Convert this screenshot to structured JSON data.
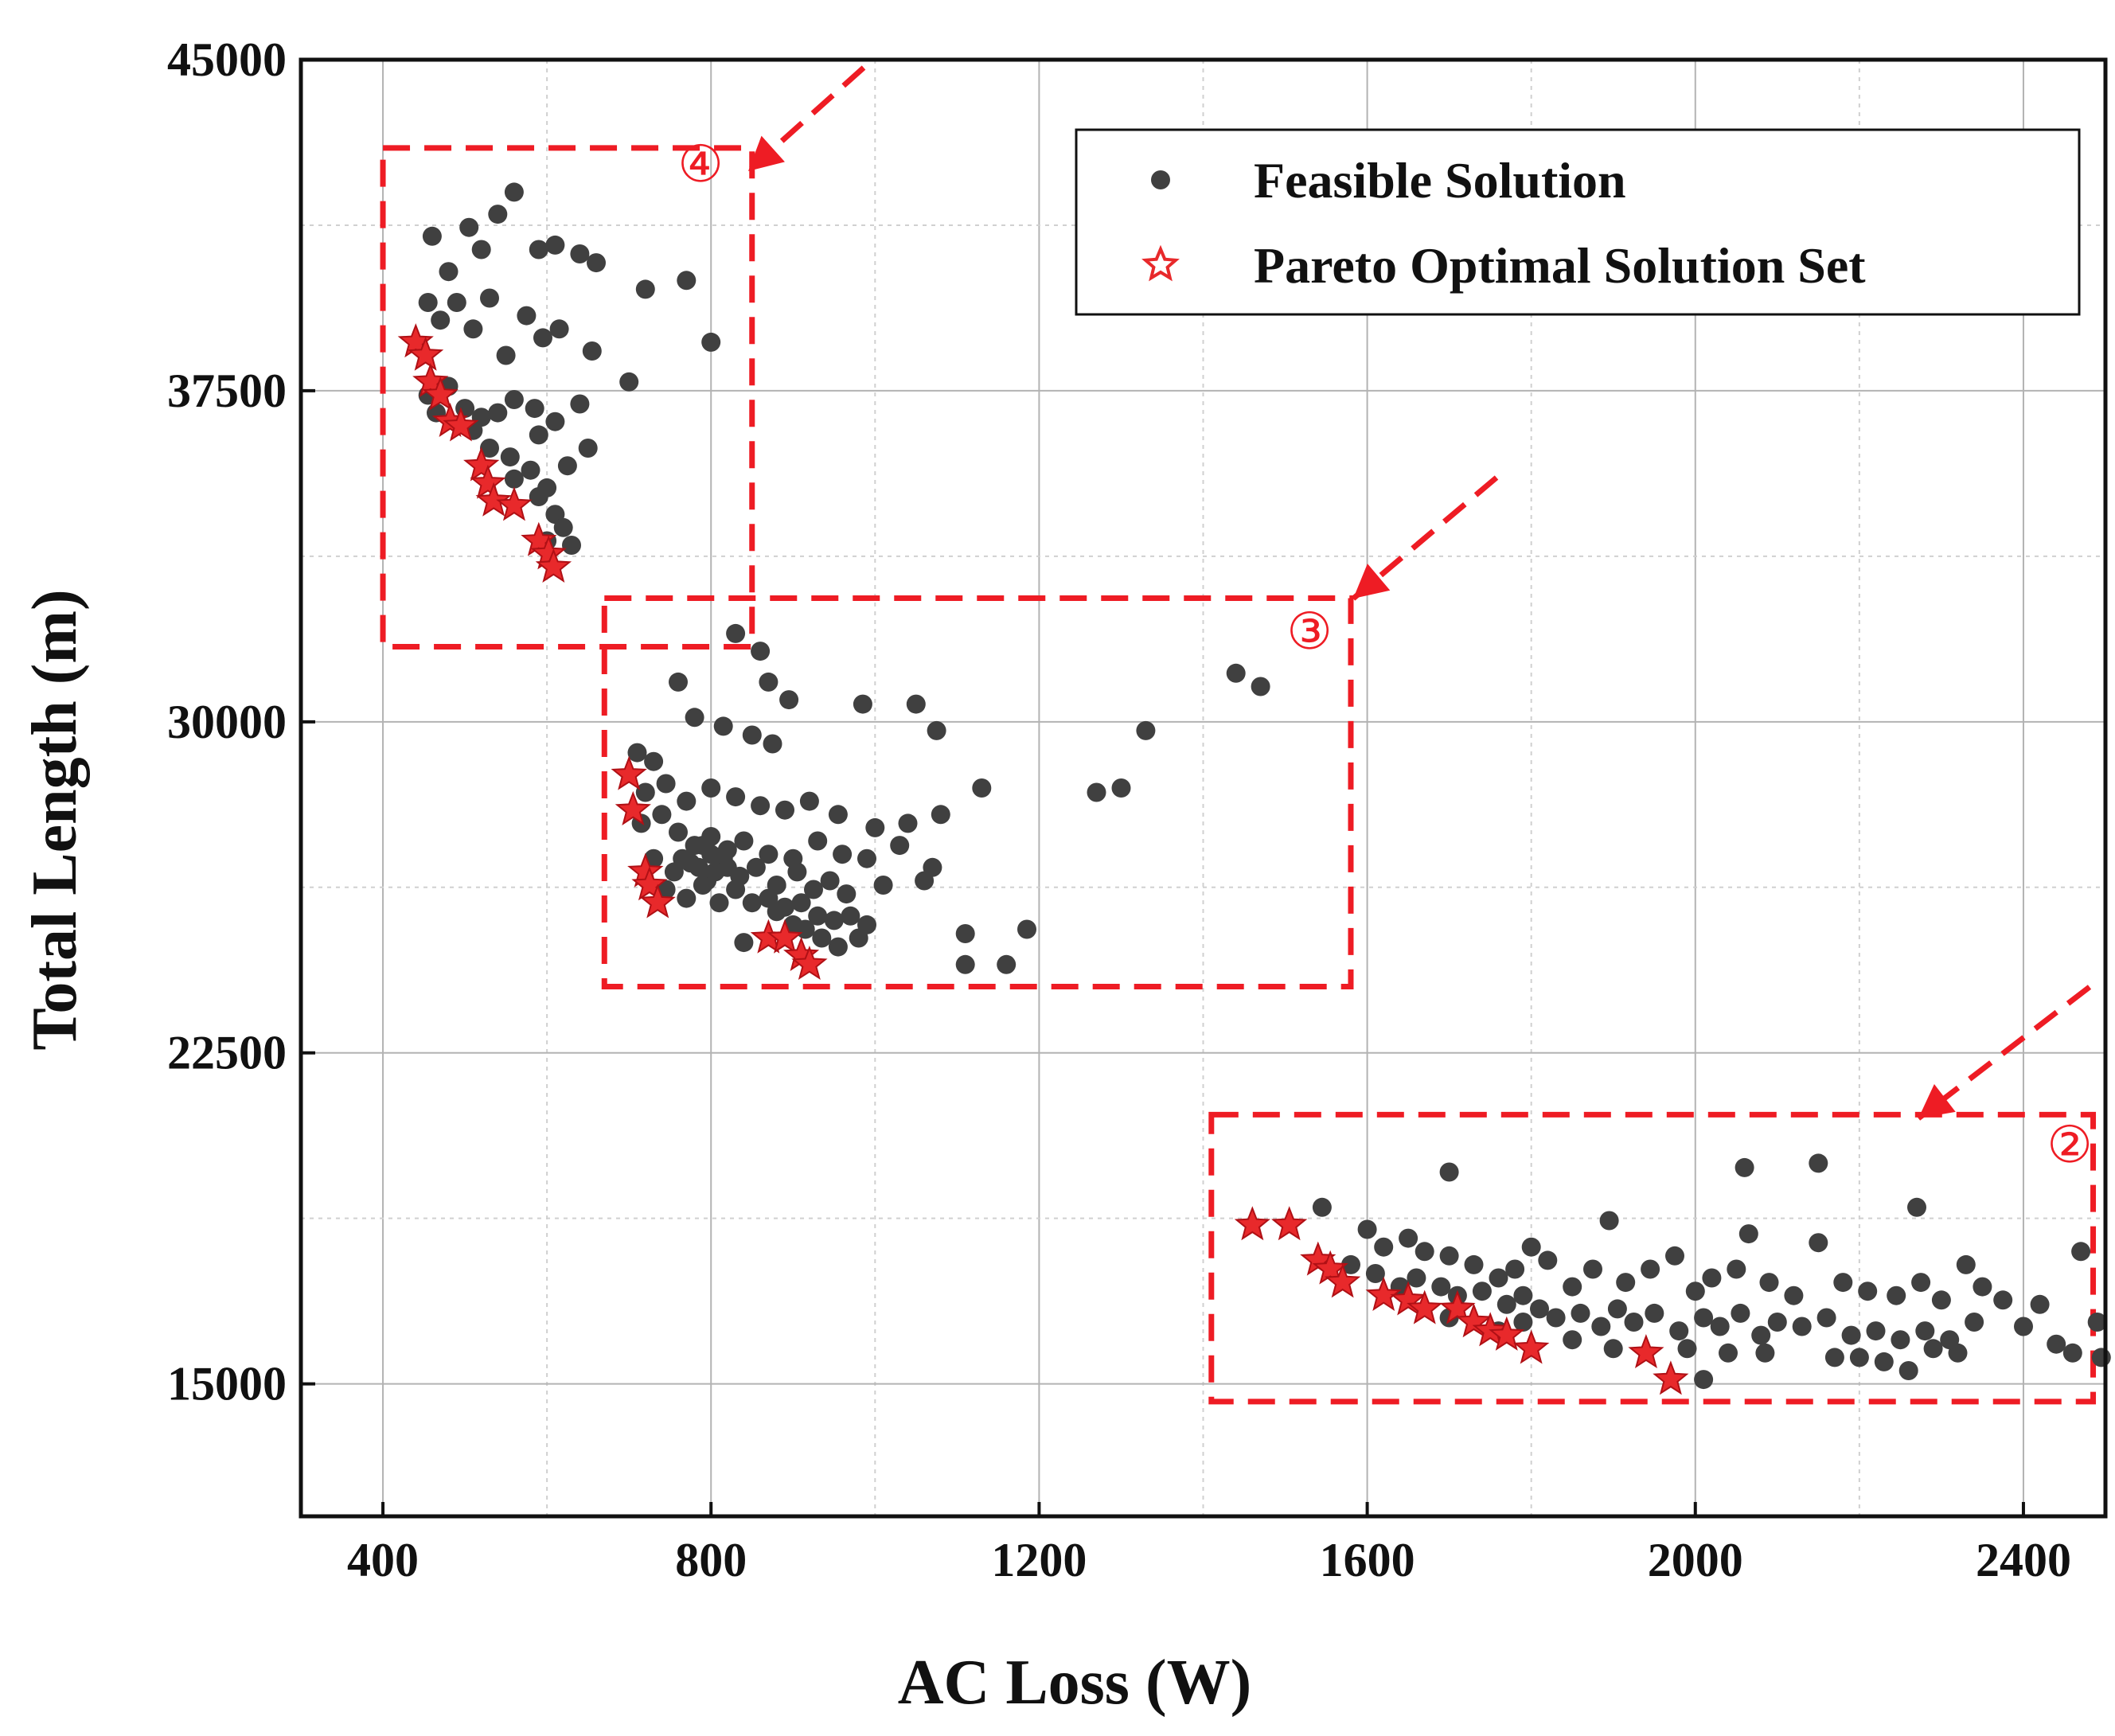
{
  "chart_data": {
    "type": "scatter",
    "xlabel": "AC Loss (W)",
    "ylabel": "Total Length (m)",
    "xlim": [
      300,
      2500
    ],
    "ylim": [
      12000,
      45000
    ],
    "xticks": [
      400,
      800,
      1200,
      1600,
      2000,
      2400
    ],
    "yticks": [
      15000,
      22500,
      30000,
      37500,
      45000
    ],
    "colors": {
      "feasible": "#404040",
      "pareto": "#e8292b",
      "annotation": "#ee1c24",
      "grid_major": "#b3b3b3",
      "grid_minor": "#d0d0d0"
    },
    "legend": {
      "position": "top-right",
      "entries": [
        "Feasible Solution",
        "Pareto Optimal Solution Set"
      ]
    },
    "series": [
      {
        "name": "Feasible Solution",
        "marker": "circle",
        "points": [
          [
            460,
            41000
          ],
          [
            480,
            40200
          ],
          [
            505,
            41200
          ],
          [
            520,
            40700
          ],
          [
            540,
            41500
          ],
          [
            560,
            42000
          ],
          [
            590,
            40700
          ],
          [
            610,
            40800
          ],
          [
            640,
            40600
          ],
          [
            660,
            40400
          ],
          [
            720,
            39800
          ],
          [
            770,
            40000
          ],
          [
            800,
            38600
          ],
          [
            455,
            39500
          ],
          [
            470,
            39100
          ],
          [
            490,
            39500
          ],
          [
            510,
            38900
          ],
          [
            530,
            39600
          ],
          [
            550,
            38300
          ],
          [
            575,
            39200
          ],
          [
            595,
            38700
          ],
          [
            615,
            38900
          ],
          [
            655,
            38400
          ],
          [
            700,
            37700
          ],
          [
            455,
            37400
          ],
          [
            465,
            37000
          ],
          [
            480,
            37600
          ],
          [
            500,
            37100
          ],
          [
            520,
            36900
          ],
          [
            540,
            37000
          ],
          [
            560,
            37300
          ],
          [
            585,
            37100
          ],
          [
            610,
            36800
          ],
          [
            640,
            37200
          ],
          [
            510,
            36600
          ],
          [
            530,
            36200
          ],
          [
            555,
            36000
          ],
          [
            580,
            35700
          ],
          [
            600,
            35300
          ],
          [
            625,
            35800
          ],
          [
            650,
            36200
          ],
          [
            590,
            36500
          ],
          [
            560,
            35500
          ],
          [
            590,
            35100
          ],
          [
            610,
            34700
          ],
          [
            620,
            34400
          ],
          [
            600,
            34100
          ],
          [
            630,
            34000
          ],
          [
            830,
            32000
          ],
          [
            860,
            31600
          ],
          [
            870,
            30900
          ],
          [
            895,
            30500
          ],
          [
            985,
            30400
          ],
          [
            1050,
            30400
          ],
          [
            1075,
            29800
          ],
          [
            1330,
            29800
          ],
          [
            1440,
            31100
          ],
          [
            1470,
            30800
          ],
          [
            760,
            30900
          ],
          [
            780,
            30100
          ],
          [
            815,
            29900
          ],
          [
            850,
            29700
          ],
          [
            875,
            29500
          ],
          [
            710,
            29300
          ],
          [
            730,
            29100
          ],
          [
            720,
            28400
          ],
          [
            745,
            28600
          ],
          [
            770,
            28200
          ],
          [
            800,
            28500
          ],
          [
            830,
            28300
          ],
          [
            860,
            28100
          ],
          [
            890,
            28000
          ],
          [
            920,
            28200
          ],
          [
            955,
            27900
          ],
          [
            1000,
            27600
          ],
          [
            1040,
            27700
          ],
          [
            1080,
            27900
          ],
          [
            1130,
            28500
          ],
          [
            1270,
            28400
          ],
          [
            1300,
            28500
          ],
          [
            715,
            27700
          ],
          [
            740,
            27900
          ],
          [
            760,
            27500
          ],
          [
            780,
            27200
          ],
          [
            800,
            27400
          ],
          [
            820,
            27100
          ],
          [
            840,
            27300
          ],
          [
            870,
            27000
          ],
          [
            900,
            26900
          ],
          [
            930,
            27300
          ],
          [
            960,
            27000
          ],
          [
            990,
            26900
          ],
          [
            1030,
            27200
          ],
          [
            1070,
            26700
          ],
          [
            730,
            26900
          ],
          [
            755,
            26600
          ],
          [
            775,
            26800
          ],
          [
            795,
            26400
          ],
          [
            815,
            26900
          ],
          [
            835,
            26500
          ],
          [
            855,
            26700
          ],
          [
            880,
            26300
          ],
          [
            905,
            26600
          ],
          [
            925,
            26200
          ],
          [
            945,
            26400
          ],
          [
            965,
            26100
          ],
          [
            1010,
            26300
          ],
          [
            1060,
            26400
          ],
          [
            745,
            26200
          ],
          [
            770,
            26000
          ],
          [
            790,
            26300
          ],
          [
            810,
            25900
          ],
          [
            830,
            26200
          ],
          [
            850,
            25900
          ],
          [
            870,
            26000
          ],
          [
            890,
            25800
          ],
          [
            910,
            25900
          ],
          [
            930,
            25600
          ],
          [
            950,
            25500
          ],
          [
            970,
            25600
          ],
          [
            990,
            25400
          ],
          [
            800,
            27000
          ],
          [
            790,
            27200
          ],
          [
            820,
            26700
          ],
          [
            805,
            26600
          ],
          [
            785,
            26700
          ],
          [
            765,
            26900
          ],
          [
            880,
            25700
          ],
          [
            900,
            25400
          ],
          [
            915,
            25300
          ],
          [
            935,
            25100
          ],
          [
            955,
            24900
          ],
          [
            980,
            25100
          ],
          [
            1110,
            25200
          ],
          [
            1185,
            25300
          ],
          [
            1110,
            24500
          ],
          [
            1160,
            24500
          ],
          [
            840,
            25000
          ],
          [
            1545,
            19000
          ],
          [
            1600,
            18500
          ],
          [
            1620,
            18100
          ],
          [
            1650,
            18300
          ],
          [
            1670,
            18000
          ],
          [
            1700,
            17900
          ],
          [
            1730,
            17700
          ],
          [
            1760,
            17400
          ],
          [
            1780,
            17600
          ],
          [
            1800,
            18100
          ],
          [
            1820,
            17800
          ],
          [
            1850,
            17200
          ],
          [
            1875,
            17600
          ],
          [
            1895,
            18700
          ],
          [
            1915,
            17300
          ],
          [
            1945,
            17600
          ],
          [
            1975,
            17900
          ],
          [
            2000,
            17100
          ],
          [
            2020,
            17400
          ],
          [
            2050,
            17600
          ],
          [
            2065,
            18400
          ],
          [
            2090,
            17300
          ],
          [
            2120,
            17000
          ],
          [
            2150,
            18200
          ],
          [
            2180,
            17300
          ],
          [
            2210,
            17100
          ],
          [
            2245,
            17000
          ],
          [
            2275,
            17300
          ],
          [
            2300,
            16900
          ],
          [
            2330,
            17700
          ],
          [
            2350,
            17200
          ],
          [
            2375,
            16900
          ],
          [
            2420,
            16800
          ],
          [
            2470,
            18000
          ],
          [
            1580,
            17700
          ],
          [
            1610,
            17500
          ],
          [
            1640,
            17200
          ],
          [
            1660,
            17400
          ],
          [
            1690,
            17200
          ],
          [
            1710,
            17000
          ],
          [
            1740,
            17100
          ],
          [
            1770,
            16800
          ],
          [
            1790,
            17000
          ],
          [
            1810,
            16700
          ],
          [
            1830,
            16500
          ],
          [
            1860,
            16600
          ],
          [
            1885,
            16300
          ],
          [
            1905,
            16700
          ],
          [
            1925,
            16400
          ],
          [
            1950,
            16600
          ],
          [
            1980,
            16200
          ],
          [
            2010,
            16500
          ],
          [
            2030,
            16300
          ],
          [
            2055,
            16600
          ],
          [
            2080,
            16100
          ],
          [
            2100,
            16400
          ],
          [
            2130,
            16300
          ],
          [
            2160,
            16500
          ],
          [
            2190,
            16100
          ],
          [
            2220,
            16200
          ],
          [
            2250,
            16000
          ],
          [
            2280,
            16200
          ],
          [
            2310,
            16000
          ],
          [
            2340,
            16400
          ],
          [
            2400,
            16300
          ],
          [
            2440,
            15900
          ],
          [
            2490,
            16400
          ],
          [
            1700,
            16500
          ],
          [
            1760,
            16200
          ],
          [
            1790,
            16400
          ],
          [
            1850,
            16000
          ],
          [
            1900,
            15800
          ],
          [
            1990,
            15800
          ],
          [
            2040,
            15700
          ],
          [
            2085,
            15700
          ],
          [
            2170,
            15600
          ],
          [
            2200,
            15600
          ],
          [
            2230,
            15500
          ],
          [
            2260,
            15300
          ],
          [
            2290,
            15800
          ],
          [
            2320,
            15700
          ],
          [
            2460,
            15700
          ],
          [
            2495,
            15600
          ],
          [
            1700,
            19800
          ],
          [
            2060,
            19900
          ],
          [
            2150,
            20000
          ],
          [
            2270,
            19000
          ],
          [
            2010,
            15100
          ]
        ]
      },
      {
        "name": "Pareto Optimal Solution Set",
        "marker": "star",
        "points": [
          [
            440,
            38600
          ],
          [
            452,
            38300
          ],
          [
            458,
            37700
          ],
          [
            470,
            37400
          ],
          [
            482,
            36800
          ],
          [
            495,
            36700
          ],
          [
            520,
            35800
          ],
          [
            528,
            35400
          ],
          [
            535,
            35000
          ],
          [
            560,
            34900
          ],
          [
            590,
            34100
          ],
          [
            602,
            33800
          ],
          [
            608,
            33500
          ],
          [
            700,
            28800
          ],
          [
            705,
            28000
          ],
          [
            720,
            26600
          ],
          [
            725,
            26300
          ],
          [
            735,
            25900
          ],
          [
            870,
            25100
          ],
          [
            890,
            25100
          ],
          [
            910,
            24700
          ],
          [
            920,
            24500
          ],
          [
            1460,
            18600
          ],
          [
            1505,
            18600
          ],
          [
            1540,
            17800
          ],
          [
            1555,
            17600
          ],
          [
            1570,
            17300
          ],
          [
            1620,
            17000
          ],
          [
            1650,
            16900
          ],
          [
            1670,
            16700
          ],
          [
            1710,
            16700
          ],
          [
            1730,
            16400
          ],
          [
            1750,
            16200
          ],
          [
            1770,
            16100
          ],
          [
            1800,
            15800
          ],
          [
            1940,
            15700
          ],
          [
            1970,
            15100
          ]
        ]
      }
    ],
    "annotations": [
      {
        "label": "④",
        "box_x": [
          400,
          850
        ],
        "box_y": [
          31700,
          43000
        ]
      },
      {
        "label": "③",
        "box_x": [
          670,
          1580
        ],
        "box_y": [
          24000,
          32800
        ]
      },
      {
        "label": "②",
        "box_x": [
          1410,
          2485
        ],
        "box_y": [
          14600,
          21100
        ]
      }
    ]
  }
}
